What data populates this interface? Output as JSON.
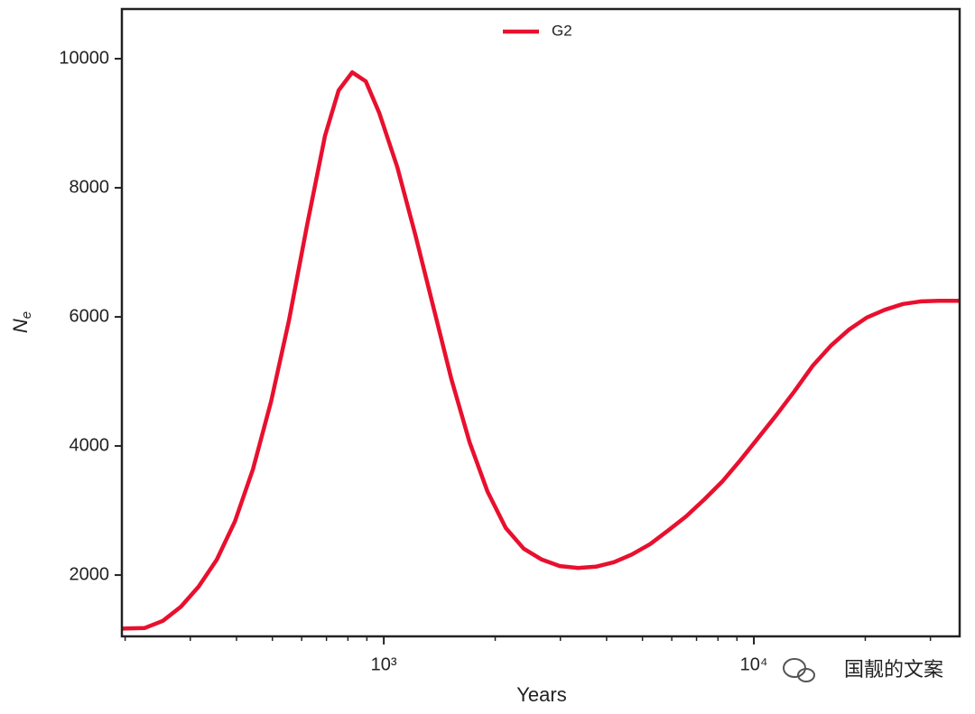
{
  "chart_data": {
    "type": "line",
    "xlabel": "Years",
    "ylabel": "N",
    "ylabel_subscript": "e",
    "xscale": "log",
    "xlim": [
      196,
      35980
    ],
    "ylim": [
      1050,
      10770
    ],
    "xticks": [
      {
        "value": 1000,
        "label": "10³"
      },
      {
        "value": 10000,
        "label": "10⁴"
      }
    ],
    "xminorticks": [
      200,
      300,
      400,
      500,
      600,
      700,
      800,
      900,
      2000,
      3000,
      4000,
      5000,
      6000,
      7000,
      8000,
      9000,
      20000,
      30000
    ],
    "yticks": [
      2000,
      4000,
      6000,
      8000,
      10000
    ],
    "legend": "upper center",
    "watermark": "国靓的文案",
    "x": [
      196,
      226,
      253,
      283,
      316,
      354,
      396,
      443,
      496,
      554,
      620,
      694,
      755,
      822,
      894,
      972,
      1088,
      1217,
      1362,
      1524,
      1705,
      1908,
      2135,
      2388,
      2672,
      2990,
      3345,
      3743,
      4188,
      4686,
      5243,
      5866,
      6564,
      7344,
      8217,
      9193,
      10285,
      11508,
      12876,
      14407,
      16120,
      18037,
      20181,
      22580,
      25264,
      28268,
      31623,
      35980
    ],
    "series": [
      {
        "name": "G2",
        "color": "#e8102e",
        "values": [
          1170,
          1180,
          1290,
          1510,
          1820,
          2240,
          2830,
          3640,
          4690,
          5940,
          7410,
          8810,
          9510,
          9790,
          9650,
          9160,
          8320,
          7270,
          6150,
          5030,
          4060,
          3290,
          2730,
          2410,
          2240,
          2140,
          2110,
          2130,
          2200,
          2320,
          2480,
          2690,
          2910,
          3170,
          3450,
          3780,
          4130,
          4480,
          4850,
          5240,
          5550,
          5800,
          5990,
          6110,
          6200,
          6240,
          6250,
          6250
        ]
      }
    ]
  }
}
